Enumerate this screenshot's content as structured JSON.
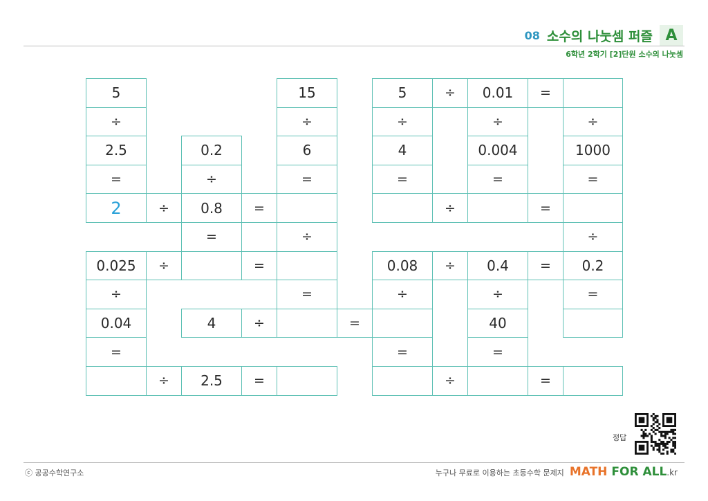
{
  "header": {
    "unit_number": "08",
    "unit_title": "소수의 나눗셈 퍼즐",
    "level": "A",
    "subtitle": "6학년 2학기 [2]단원 소수의 나눗셈"
  },
  "puzzle": {
    "cells": {
      "r1c1": "5",
      "r1c4": "15",
      "r1c5": "5",
      "r1c6": "÷",
      "r1c7": "0.01",
      "r1c8": "=",
      "r1c9": "",
      "r2c1": "÷",
      "r2c4": "÷",
      "r2c5": "÷",
      "r2c7": "÷",
      "r2c9": "÷",
      "r3c1": "2.5",
      "r3c2": "0.2",
      "r3c4": "6",
      "r3c5": "4",
      "r3c7": "0.004",
      "r3c9": "1000",
      "r4c1": "=",
      "r4c2": "÷",
      "r4c4": "=",
      "r4c5": "=",
      "r4c7": "=",
      "r4c9": "=",
      "r5c1": "2",
      "r5op1": "÷",
      "r5c2": "0.8",
      "r5op2": "=",
      "r5c4": "",
      "r5c5": "",
      "r5c6": "÷",
      "r5c7": "",
      "r5c8": "=",
      "r5c9": "",
      "r6c2": "=",
      "r6c4": "÷",
      "r6c9": "÷",
      "r7c1": "0.025",
      "r7op1": "÷",
      "r7c2": "",
      "r7op2": "=",
      "r7c4": "",
      "r7c5": "0.08",
      "r7c6": "÷",
      "r7c7": "0.4",
      "r7c8": "=",
      "r7c9": "0.2",
      "r8c1": "÷",
      "r8c4": "=",
      "r8c5": "÷",
      "r8c7": "÷",
      "r8c9": "=",
      "r9c1": "0.04",
      "r9c2": "4",
      "r9op2": "÷",
      "r9c4": "",
      "r9op3": "=",
      "r9c5": "",
      "r9c7": "40",
      "r9c9": "",
      "r10c1": "=",
      "r10c5": "=",
      "r10c7": "=",
      "r11c1": "",
      "r11op1": "÷",
      "r11c2": "2.5",
      "r11op2": "=",
      "r11c4": "",
      "r11c5": "",
      "r11c6": "÷",
      "r11c7": "",
      "r11c8": "=",
      "r11c9": ""
    }
  },
  "answer_key_label": "정답",
  "footer": {
    "copyright": "ⓒ 공공수학연구소",
    "tagline": "누구나 무료로 이용하는 초등수학 문제지",
    "brand_math": "MATH",
    "brand_forall": "FOR ALL",
    "brand_kr": ".kr"
  },
  "colors": {
    "grid_border": "#5dc0b4",
    "answer": "#27a0d7",
    "title_green": "#2e8f3a",
    "unit_blue": "#2f97c1",
    "brand_orange": "#e8732a"
  }
}
